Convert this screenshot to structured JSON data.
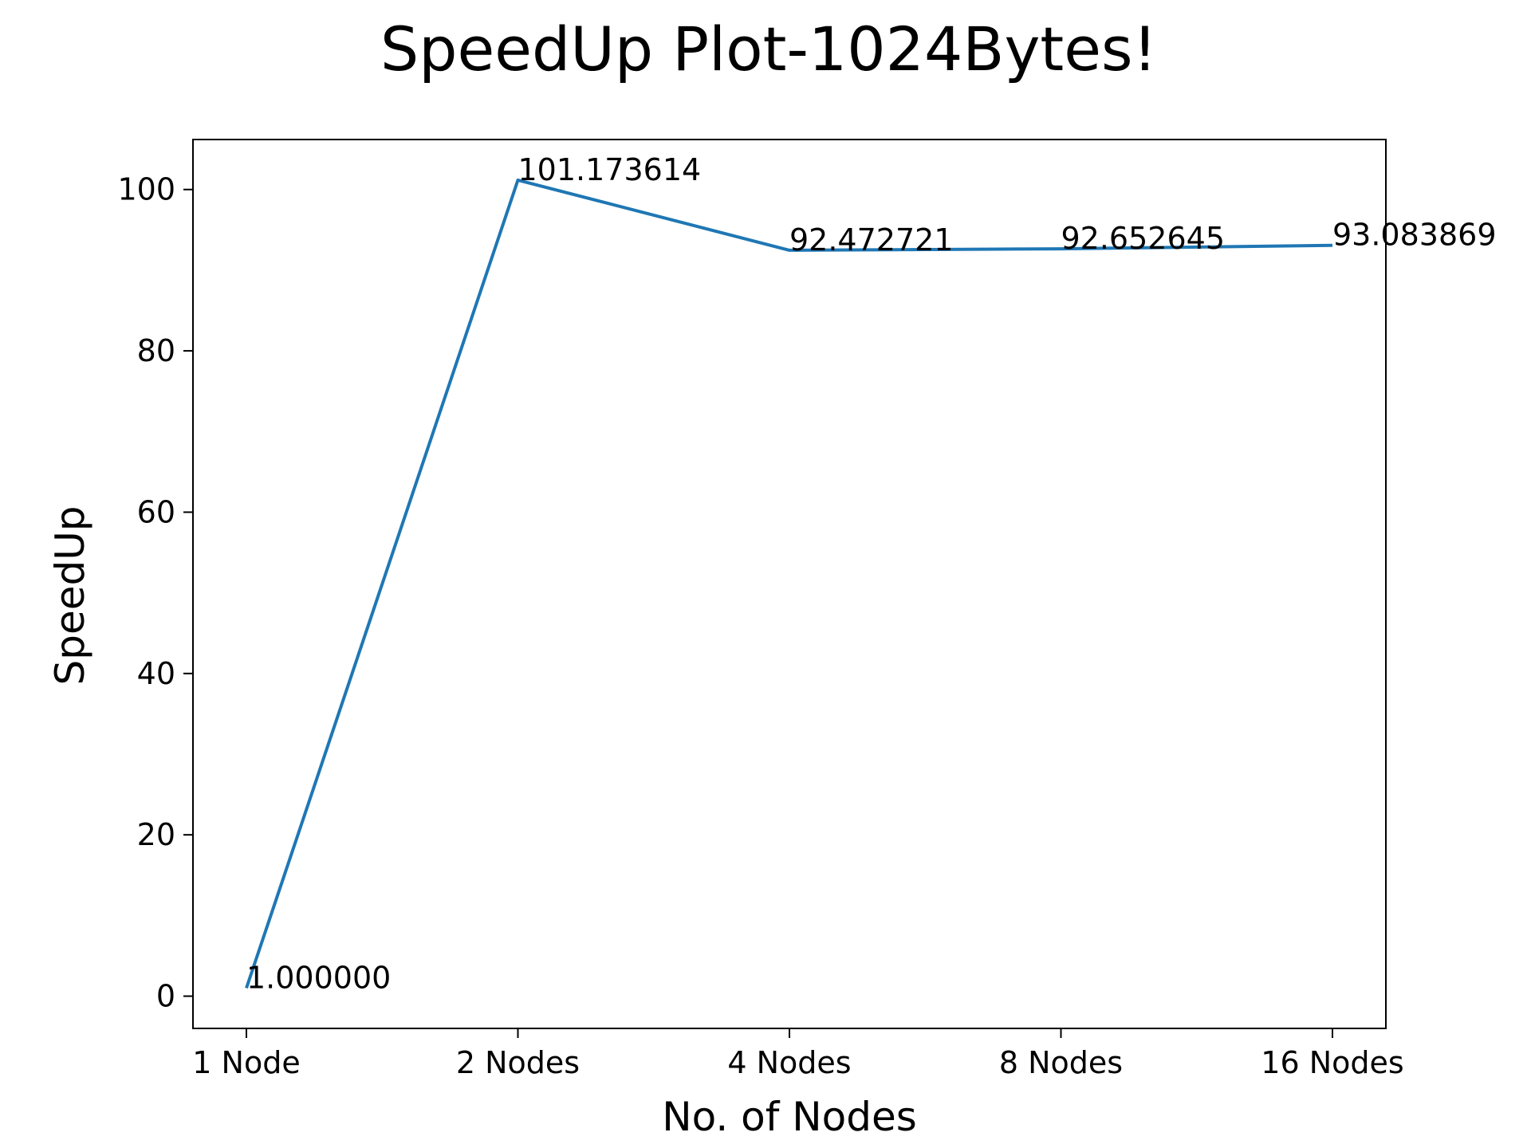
{
  "chart_data": {
    "type": "line",
    "title": "SpeedUp Plot-1024Bytes!",
    "xlabel": "No. of Nodes",
    "ylabel": "SpeedUp",
    "categories": [
      "1 Node",
      "2 Nodes",
      "4 Nodes",
      "8 Nodes",
      "16 Nodes"
    ],
    "series": [
      {
        "values": [
          1.0,
          101.173614,
          92.472721,
          92.652645,
          93.083869
        ],
        "color": "#1f77b4"
      }
    ],
    "data_labels": [
      "1.000000",
      "101.173614",
      "92.472721",
      "92.652645",
      "93.083869"
    ],
    "ylim": [
      -4.0,
      106.2
    ],
    "yticks": [
      0,
      20,
      40,
      60,
      80,
      100
    ],
    "ytick_labels": [
      "0",
      "20",
      "40",
      "60",
      "80",
      "100"
    ],
    "grid": false,
    "legend": "none"
  }
}
